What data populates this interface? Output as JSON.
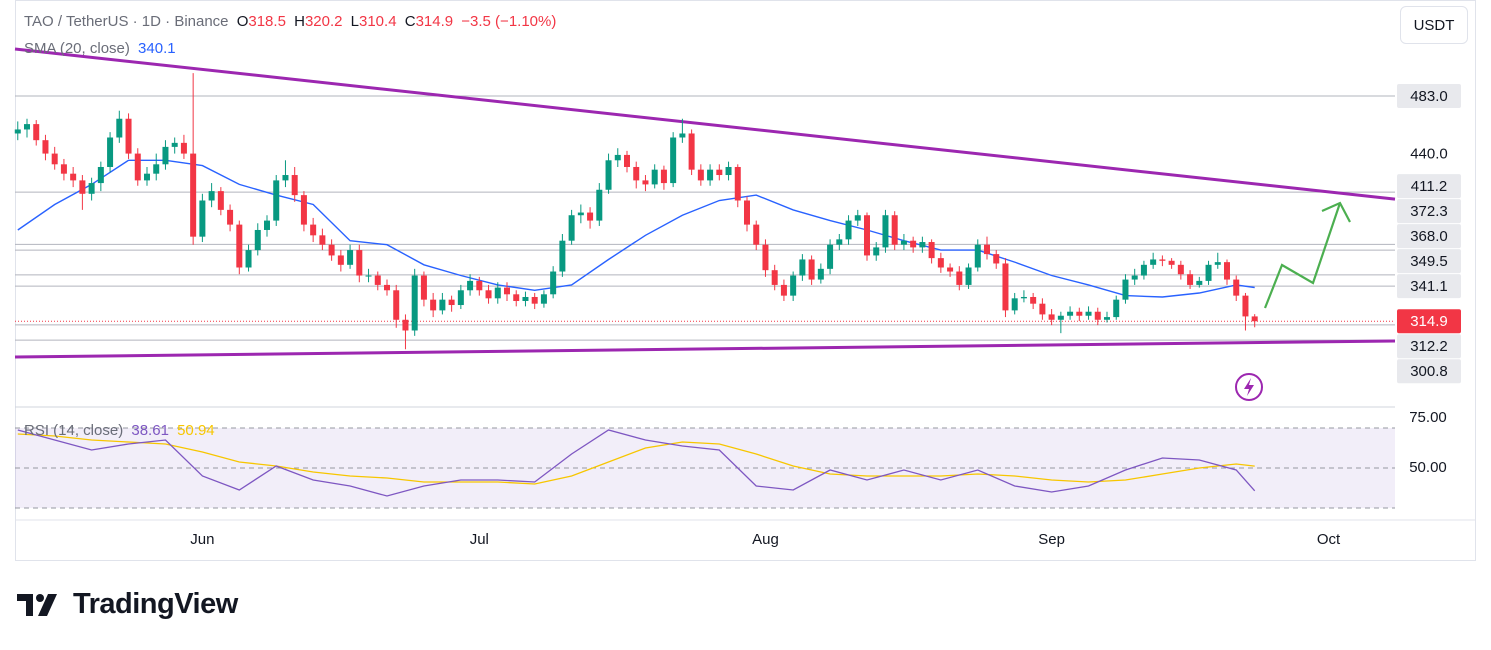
{
  "brand": "TradingView",
  "chart_data": {
    "type": "candlestick",
    "title": "TAO / TetherUS · 1D · Binance",
    "ohlc_labels": [
      "O",
      "H",
      "L",
      "C"
    ],
    "change": "−3.5 (−1.10%)",
    "currency": "USDT",
    "up_color": "#089981",
    "down_color": "#f23645",
    "candles": [
      [
        455,
        464,
        450,
        458
      ],
      [
        458,
        466,
        452,
        462
      ],
      [
        462,
        465,
        446,
        450
      ],
      [
        450,
        454,
        435,
        440
      ],
      [
        440,
        445,
        428,
        432
      ],
      [
        432,
        436,
        420,
        425
      ],
      [
        425,
        430,
        415,
        420
      ],
      [
        420,
        424,
        398,
        410
      ],
      [
        410,
        422,
        405,
        418
      ],
      [
        418,
        434,
        412,
        430
      ],
      [
        430,
        456,
        426,
        452
      ],
      [
        452,
        472,
        448,
        466
      ],
      [
        466,
        470,
        436,
        440
      ],
      [
        440,
        444,
        416,
        420
      ],
      [
        420,
        430,
        416,
        425
      ],
      [
        425,
        440,
        420,
        432
      ],
      [
        432,
        450,
        428,
        445
      ],
      [
        445,
        452,
        440,
        448
      ],
      [
        448,
        454,
        436,
        440
      ],
      [
        440,
        500,
        372,
        378
      ],
      [
        378,
        410,
        374,
        405
      ],
      [
        405,
        418,
        400,
        412
      ],
      [
        412,
        415,
        394,
        398
      ],
      [
        398,
        402,
        382,
        387
      ],
      [
        387,
        390,
        350,
        355
      ],
      [
        355,
        372,
        352,
        368
      ],
      [
        368,
        388,
        364,
        383
      ],
      [
        383,
        394,
        378,
        390
      ],
      [
        390,
        424,
        386,
        420
      ],
      [
        420,
        435,
        415,
        424
      ],
      [
        424,
        430,
        404,
        409
      ],
      [
        409,
        412,
        382,
        387
      ],
      [
        387,
        392,
        374,
        379
      ],
      [
        379,
        384,
        368,
        372
      ],
      [
        372,
        376,
        360,
        364
      ],
      [
        364,
        368,
        352,
        357
      ],
      [
        357,
        372,
        354,
        368
      ],
      [
        368,
        372,
        344,
        349
      ],
      [
        349,
        354,
        344,
        349
      ],
      [
        349,
        352,
        338,
        342
      ],
      [
        342,
        346,
        334,
        338
      ],
      [
        338,
        342,
        310,
        316
      ],
      [
        316,
        320,
        294,
        308
      ],
      [
        308,
        354,
        304,
        349
      ],
      [
        349,
        352,
        326,
        331
      ],
      [
        331,
        336,
        318,
        323
      ],
      [
        323,
        336,
        320,
        331
      ],
      [
        331,
        334,
        322,
        327
      ],
      [
        327,
        342,
        324,
        338
      ],
      [
        338,
        350,
        334,
        345
      ],
      [
        345,
        348,
        334,
        338
      ],
      [
        338,
        342,
        328,
        332
      ],
      [
        332,
        344,
        328,
        340
      ],
      [
        340,
        344,
        330,
        335
      ],
      [
        335,
        338,
        326,
        330
      ],
      [
        330,
        337,
        326,
        333
      ],
      [
        333,
        336,
        324,
        328
      ],
      [
        328,
        338,
        325,
        335
      ],
      [
        335,
        356,
        332,
        352
      ],
      [
        352,
        380,
        348,
        375
      ],
      [
        375,
        398,
        372,
        394
      ],
      [
        394,
        402,
        388,
        396
      ],
      [
        396,
        400,
        384,
        390
      ],
      [
        390,
        418,
        386,
        413
      ],
      [
        413,
        440,
        410,
        435
      ],
      [
        435,
        444,
        430,
        439
      ],
      [
        439,
        442,
        426,
        430
      ],
      [
        430,
        434,
        414,
        420
      ],
      [
        420,
        424,
        412,
        417
      ],
      [
        417,
        432,
        414,
        428
      ],
      [
        428,
        431,
        413,
        418
      ],
      [
        418,
        456,
        415,
        452
      ],
      [
        452,
        466,
        448,
        455
      ],
      [
        455,
        458,
        424,
        428
      ],
      [
        428,
        432,
        416,
        420
      ],
      [
        420,
        432,
        416,
        428
      ],
      [
        428,
        432,
        420,
        424
      ],
      [
        424,
        434,
        420,
        430
      ],
      [
        430,
        432,
        400,
        405
      ],
      [
        405,
        408,
        382,
        387
      ],
      [
        387,
        390,
        368,
        372
      ],
      [
        372,
        376,
        348,
        353
      ],
      [
        353,
        357,
        338,
        342
      ],
      [
        342,
        346,
        330,
        334
      ],
      [
        334,
        352,
        330,
        349
      ],
      [
        349,
        365,
        345,
        361
      ],
      [
        361,
        364,
        342,
        346
      ],
      [
        346,
        358,
        343,
        354
      ],
      [
        354,
        376,
        350,
        372
      ],
      [
        372,
        380,
        368,
        376
      ],
      [
        376,
        394,
        372,
        390
      ],
      [
        390,
        398,
        386,
        394
      ],
      [
        394,
        396,
        360,
        364
      ],
      [
        364,
        374,
        360,
        370
      ],
      [
        370,
        398,
        366,
        394
      ],
      [
        394,
        397,
        368,
        372
      ],
      [
        372,
        380,
        368,
        375
      ],
      [
        375,
        378,
        366,
        370
      ],
      [
        370,
        378,
        366,
        374
      ],
      [
        374,
        376,
        358,
        362
      ],
      [
        362,
        366,
        351,
        355
      ],
      [
        355,
        358,
        348,
        352
      ],
      [
        352,
        356,
        338,
        342
      ],
      [
        342,
        358,
        339,
        355
      ],
      [
        355,
        376,
        352,
        372
      ],
      [
        372,
        378,
        361,
        365
      ],
      [
        365,
        368,
        354,
        358
      ],
      [
        358,
        362,
        318,
        323
      ],
      [
        323,
        336,
        320,
        332
      ],
      [
        332,
        338,
        329,
        333
      ],
      [
        333,
        336,
        324,
        328
      ],
      [
        328,
        332,
        316,
        320
      ],
      [
        320,
        324,
        312,
        316
      ],
      [
        316,
        322,
        306,
        319
      ],
      [
        319,
        326,
        316,
        322
      ],
      [
        322,
        325,
        315,
        319
      ],
      [
        319,
        326,
        316,
        322
      ],
      [
        322,
        325,
        312,
        316
      ],
      [
        316,
        322,
        314,
        318
      ],
      [
        318,
        334,
        316,
        331
      ],
      [
        331,
        350,
        328,
        346
      ],
      [
        346,
        354,
        342,
        349
      ],
      [
        349,
        360,
        346,
        357
      ],
      [
        357,
        366,
        354,
        361
      ],
      [
        361,
        364,
        356,
        360
      ],
      [
        360,
        362,
        354,
        357
      ],
      [
        357,
        360,
        346,
        350
      ],
      [
        350,
        353,
        339,
        342
      ],
      [
        342,
        348,
        340,
        345
      ],
      [
        345,
        360,
        342,
        357
      ],
      [
        357,
        366,
        354,
        359
      ],
      [
        359,
        361,
        342,
        346
      ],
      [
        346,
        349,
        330,
        334
      ],
      [
        334,
        336,
        308,
        318.5
      ],
      [
        318.5,
        320.2,
        310.4,
        314.9
      ]
    ],
    "xlim": [
      -0.3,
      149.2
    ],
    "xticks": [
      {
        "value": 20,
        "label": "Jun"
      },
      {
        "value": 50,
        "label": "Jul"
      },
      {
        "value": 81,
        "label": "Aug"
      },
      {
        "value": 112,
        "label": "Sep"
      },
      {
        "value": 142,
        "label": "Oct"
      }
    ],
    "ylim": [
      252.4,
      554.6
    ],
    "yticks": [
      {
        "value": 440,
        "label": "440.0"
      }
    ],
    "levels": [
      {
        "value": 483,
        "label": "483.0"
      },
      411.2,
      372.3,
      {
        "value": 368,
        "label": "368.0"
      },
      349.5,
      341.1,
      312.2,
      300.8
    ],
    "last_price": 314.9,
    "trendlines": [
      {
        "color": "#9c27b0",
        "points": [
          [
            -0.3,
            518
          ],
          [
            149.2,
            406
          ]
        ]
      },
      {
        "color": "#9c27b0",
        "points": [
          [
            -0.3,
            288.2
          ],
          [
            149.2,
            300.2
          ]
        ]
      }
    ],
    "overlay_x": [
      0,
      4,
      8,
      12,
      16,
      20,
      24,
      28,
      32,
      36,
      40,
      44,
      48,
      52,
      56,
      60,
      64,
      68,
      72,
      76,
      80,
      84,
      88,
      92,
      96,
      100,
      104,
      108,
      112,
      116,
      120,
      124,
      128,
      132,
      134
    ],
    "sma": {
      "name": "SMA (20, close)",
      "color": "#2962ff",
      "values": [
        383,
        402,
        417,
        435,
        435,
        431,
        417,
        409,
        402,
        375,
        372,
        357,
        349,
        342,
        338,
        342,
        361,
        379,
        394,
        405,
        409,
        398,
        390,
        383,
        375,
        368,
        368,
        359,
        349,
        342,
        334,
        333,
        336,
        342,
        340.1
      ]
    },
    "rsi": {
      "name": "RSI (14, close)",
      "color": "#7e57c2",
      "ma_color": "#f7c600",
      "ylim": [
        24,
        79.5
      ],
      "yticks": [
        {
          "value": 75,
          "label": "75.00"
        },
        {
          "value": 50,
          "label": "50.00"
        }
      ],
      "bands": [
        70,
        50,
        30
      ],
      "values": [
        69,
        64,
        59,
        62,
        64,
        46,
        39,
        51,
        44,
        41,
        36,
        41,
        44,
        44,
        43,
        57,
        69,
        64,
        61,
        59,
        41,
        39,
        49,
        44,
        49,
        44,
        49,
        41,
        38,
        41,
        49,
        55,
        54,
        49,
        38.61
      ],
      "ma_values": [
        67,
        66,
        64,
        63,
        62,
        58,
        53,
        51,
        48,
        46,
        45,
        43,
        43,
        43,
        42,
        46,
        53,
        60,
        63,
        62,
        57,
        51,
        47,
        46,
        46,
        46,
        47,
        46,
        44,
        43,
        44,
        47,
        50,
        52,
        50.94
      ]
    }
  }
}
